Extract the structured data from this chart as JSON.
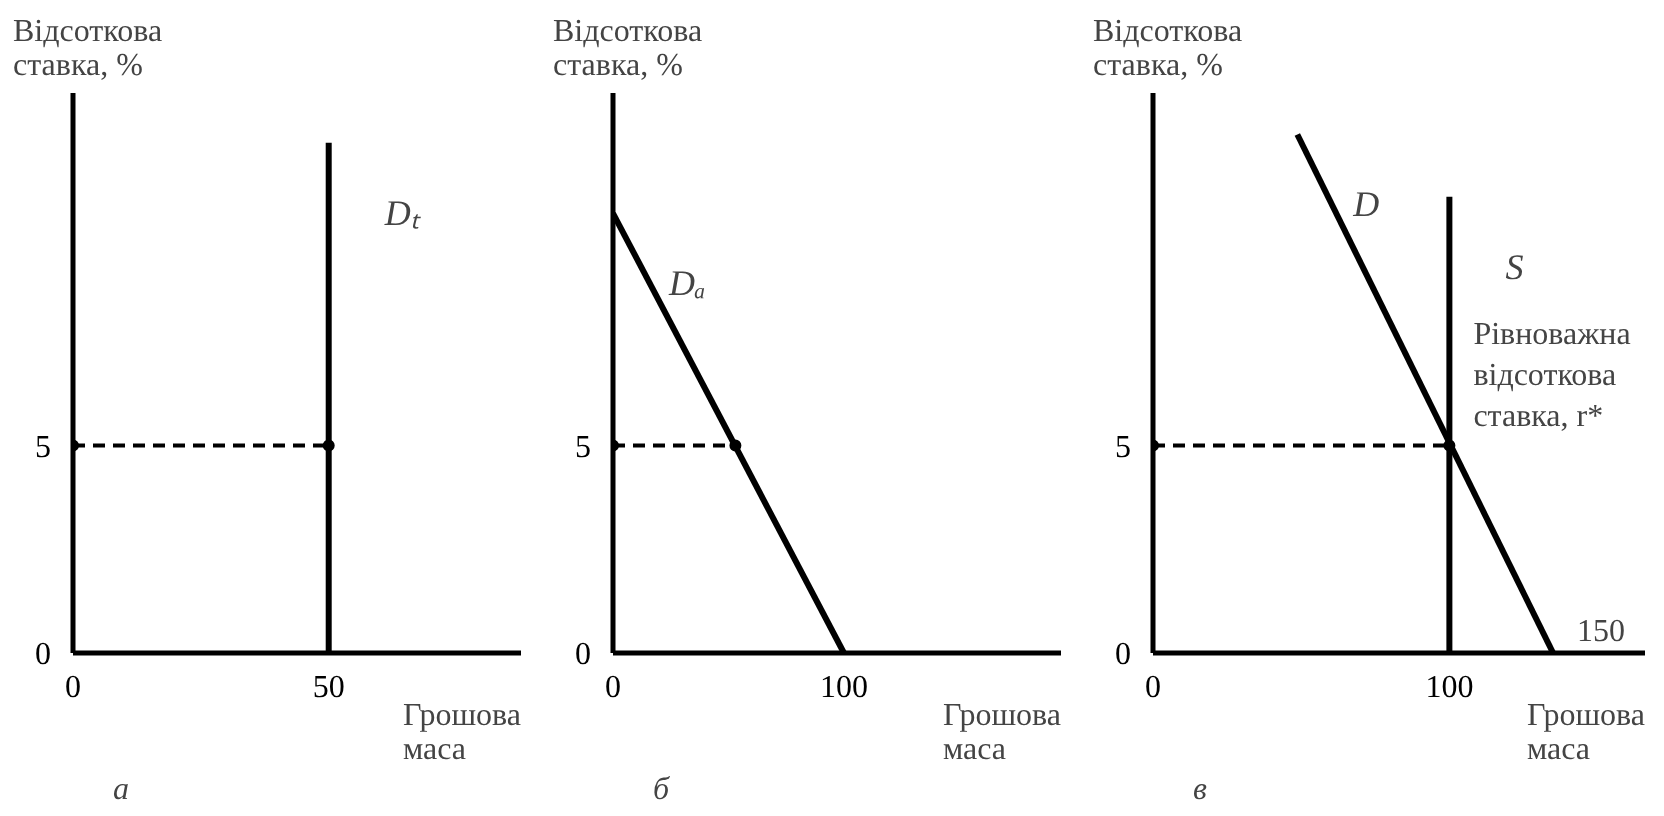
{
  "chart_data": [
    {
      "type": "line",
      "title": "а",
      "xlabel": "Грошова маса",
      "ylabel": "Відсоткова\nставка, %",
      "xlim": [
        0,
        87.6
      ],
      "ylim": [
        0,
        13.5
      ],
      "xticks": [
        0,
        50
      ],
      "yticks": [
        0,
        5
      ],
      "grid": false,
      "marker": "none",
      "series": [
        {
          "name": "Dₜ",
          "color": "#000000",
          "x": [
            50,
            50
          ],
          "values": [
            12.3,
            0
          ]
        },
        {
          "color": "#000000",
          "x": [
            0,
            50
          ],
          "values": [
            5,
            5
          ],
          "line_style": "dashed",
          "marker": "circle"
        }
      ]
    },
    {
      "type": "line",
      "title": "б",
      "xlabel": "Грошова маса",
      "ylabel": "Відсоткова\nставка, %",
      "xlim": [
        0,
        194
      ],
      "ylim": [
        0,
        13.5
      ],
      "xticks": [
        0,
        100
      ],
      "yticks": [
        0,
        5
      ],
      "grid": false,
      "marker": "none",
      "series": [
        {
          "name": "Dₐ",
          "color": "#000000",
          "x": [
            0,
            100
          ],
          "values": [
            10.6,
            0
          ]
        },
        {
          "color": "#000000",
          "x": [
            0,
            53
          ],
          "values": [
            5,
            5
          ],
          "line_style": "dashed",
          "marker": "circle"
        }
      ]
    },
    {
      "type": "line",
      "title": "в",
      "xlabel": "Грошова маса",
      "ylabel": "Відсоткова\nставка, %",
      "xlim": [
        0,
        166
      ],
      "ylim": [
        0,
        13.5
      ],
      "xticks": [
        0,
        100
      ],
      "yticks": [
        0,
        5
      ],
      "grid": false,
      "marker": "none",
      "series": [
        {
          "name": "D",
          "color": "#000000",
          "x": [
            48.7,
            135
          ],
          "values": [
            12.5,
            0
          ]
        },
        {
          "name": "S",
          "color": "#000000",
          "x": [
            100,
            100
          ],
          "values": [
            11.0,
            0
          ]
        },
        {
          "color": "#000000",
          "x": [
            0,
            100
          ],
          "values": [
            5,
            5
          ],
          "line_style": "dashed",
          "marker": "circle"
        }
      ],
      "annotations": [
        {
          "text": "Рівноважна\nвідсоткова\nставка, r*",
          "x": 100,
          "y": 5
        },
        {
          "text": "150",
          "x": 135,
          "y": 0
        }
      ]
    }
  ]
}
